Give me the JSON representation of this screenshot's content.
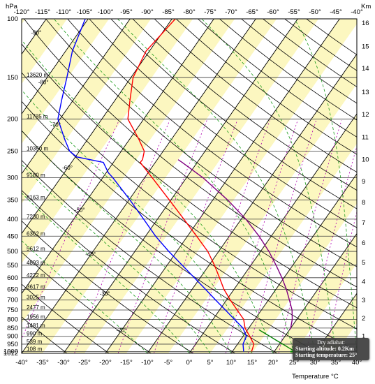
{
  "chart_data": {
    "type": "line",
    "chart_kind": "skew-t log-p thermodynamic diagram",
    "ylabel_left": "hPa",
    "ylabel_right": "Km",
    "xlabel": "Temperature °C",
    "temperature_range_bottom": [
      -40,
      40
    ],
    "top_axis_ticks": [
      "-120°",
      "-115°",
      "-110°",
      "-105°",
      "-100°",
      "-95°",
      "-90°",
      "-85°",
      "-80°",
      "-75°",
      "-70°",
      "-65°",
      "-60°",
      "-55°",
      "-50°",
      "-45°",
      "-40°"
    ],
    "bottom_axis_ticks": [
      "-40°",
      "-35°",
      "-30°",
      "-25°",
      "-20°",
      "-15°",
      "-10°",
      "-5°",
      "0°",
      "5°",
      "10°",
      "15°",
      "20°",
      "25°",
      "30°",
      "35°",
      "40°"
    ],
    "pressure_levels": [
      100,
      150,
      200,
      250,
      300,
      350,
      400,
      450,
      500,
      550,
      600,
      650,
      700,
      750,
      800,
      850,
      900,
      950,
      1000,
      1012
    ],
    "pressure_labels": [
      "100",
      "150",
      "200",
      "250",
      "300",
      "350",
      "400",
      "450",
      "500",
      "550",
      "600",
      "650",
      "700",
      "750",
      "800",
      "850",
      "900",
      "950",
      "1000",
      "1012"
    ],
    "height_labels": [
      {
        "p": 150,
        "text": "13620 m"
      },
      {
        "p": 200,
        "text": "11785 m"
      },
      {
        "p": 250,
        "text": "10350 m"
      },
      {
        "p": 300,
        "text": "9180 m"
      },
      {
        "p": 350,
        "text": "8163 m"
      },
      {
        "p": 400,
        "text": "7230 m"
      },
      {
        "p": 450,
        "text": "6362 m"
      },
      {
        "p": 500,
        "text": "5612 m"
      },
      {
        "p": 550,
        "text": "4893 m"
      },
      {
        "p": 600,
        "text": "4222 m"
      },
      {
        "p": 650,
        "text": "3617 m"
      },
      {
        "p": 700,
        "text": "3025 m"
      },
      {
        "p": 750,
        "text": "2477 m"
      },
      {
        "p": 800,
        "text": "1956 m"
      },
      {
        "p": 850,
        "text": "1481 m"
      },
      {
        "p": 900,
        "text": "990 m"
      },
      {
        "p": 950,
        "text": "539 m"
      },
      {
        "p": 1000,
        "text": "108 m"
      }
    ],
    "km_ticks": [
      {
        "km": 1,
        "p": 898
      },
      {
        "km": 2,
        "p": 795
      },
      {
        "km": 3,
        "p": 701
      },
      {
        "km": 4,
        "p": 616
      },
      {
        "km": 5,
        "p": 540
      },
      {
        "km": 6,
        "p": 472
      },
      {
        "km": 7,
        "p": 410
      },
      {
        "km": 8,
        "p": 356
      },
      {
        "km": 9,
        "p": 308
      },
      {
        "km": 10,
        "p": 265
      },
      {
        "km": 11,
        "p": 227
      },
      {
        "km": 12,
        "p": 194
      },
      {
        "km": 13,
        "p": 166
      },
      {
        "km": 14,
        "p": 141
      },
      {
        "km": 15,
        "p": 121
      },
      {
        "km": 16,
        "p": 103
      }
    ],
    "isotherm_labels": [
      {
        "t": -90,
        "p": 110,
        "text": "-90°"
      },
      {
        "t": -80,
        "p": 155,
        "text": "-80°"
      },
      {
        "t": -70,
        "p": 208,
        "text": "-70°"
      },
      {
        "t": -60,
        "p": 280,
        "text": "-60°"
      },
      {
        "t": -50,
        "p": 375,
        "text": "-50°"
      },
      {
        "t": -40,
        "p": 510,
        "text": "-40°"
      },
      {
        "t": -30,
        "p": 670,
        "text": "-30°"
      },
      {
        "t": -20,
        "p": 860,
        "text": "-20°"
      }
    ],
    "series": [
      {
        "name": "Temperature",
        "color": "#ff0000",
        "points": [
          [
            1000,
            14.6
          ],
          [
            950,
            13.9
          ],
          [
            900,
            11.6
          ],
          [
            850,
            9.1
          ],
          [
            800,
            7.3
          ],
          [
            750,
            4.2
          ],
          [
            700,
            0.9
          ],
          [
            650,
            -2.4
          ],
          [
            600,
            -5.4
          ],
          [
            550,
            -8.7
          ],
          [
            500,
            -12.6
          ],
          [
            450,
            -17.8
          ],
          [
            400,
            -23.7
          ],
          [
            350,
            -30.4
          ],
          [
            300,
            -38.2
          ],
          [
            270,
            -43.6
          ],
          [
            265,
            -43.5
          ],
          [
            250,
            -44.5
          ],
          [
            230,
            -47.8
          ],
          [
            200,
            -53.8
          ],
          [
            175,
            -56.5
          ],
          [
            150,
            -59.5
          ],
          [
            125,
            -60.8
          ],
          [
            100,
            -59.2
          ]
        ]
      },
      {
        "name": "Dew point",
        "color": "#0000ff",
        "points": [
          [
            1000,
            12.7
          ],
          [
            950,
            11.3
          ],
          [
            900,
            10.8
          ],
          [
            850,
            8.6
          ],
          [
            800,
            5.1
          ],
          [
            750,
            1.4
          ],
          [
            700,
            -2.6
          ],
          [
            650,
            -6.8
          ],
          [
            600,
            -11.4
          ],
          [
            550,
            -16.4
          ],
          [
            500,
            -21.9
          ],
          [
            450,
            -27.6
          ],
          [
            400,
            -33.3
          ],
          [
            350,
            -39.8
          ],
          [
            300,
            -47.6
          ],
          [
            290,
            -49.5
          ],
          [
            270,
            -52.4
          ],
          [
            260,
            -59.7
          ],
          [
            250,
            -62.3
          ],
          [
            230,
            -65.5
          ],
          [
            200,
            -70.5
          ],
          [
            175,
            -72.8
          ],
          [
            150,
            -75.3
          ],
          [
            125,
            -78.4
          ],
          [
            100,
            -80.7
          ]
        ]
      },
      {
        "name": "Parcel path",
        "color": "#800080",
        "points": [
          [
            860,
            20.0
          ],
          [
            850,
            20.0
          ],
          [
            800,
            18.9
          ],
          [
            750,
            17.3
          ],
          [
            700,
            15.0
          ],
          [
            650,
            12.5
          ],
          [
            600,
            9.5
          ],
          [
            550,
            6.0
          ],
          [
            500,
            2.0
          ],
          [
            450,
            -2.9
          ],
          [
            400,
            -8.9
          ],
          [
            350,
            -16.5
          ],
          [
            300,
            -26.1
          ],
          [
            270,
            -33.6
          ],
          [
            265,
            -35.0
          ]
        ]
      },
      {
        "name": "Dry adiabat",
        "color": "#008000",
        "points": [
          [
            1000,
            25.0
          ],
          [
            975,
            22.9
          ],
          [
            950,
            20.8
          ],
          [
            925,
            18.6
          ],
          [
            900,
            16.4
          ],
          [
            875,
            14.1
          ],
          [
            860,
            12.7
          ]
        ]
      }
    ],
    "dry_adiabat_thetas_c": [
      -30,
      -20,
      -10,
      0,
      10,
      20,
      30,
      40,
      50,
      60,
      70,
      80,
      90,
      100,
      110,
      120,
      130,
      140,
      150,
      160,
      170,
      180,
      190,
      200
    ],
    "moist_adiabat_starts_c": [
      -10,
      0,
      5,
      10,
      15,
      20,
      25,
      30,
      35,
      40
    ],
    "mixing_ratios_gkg": [
      0.1,
      0.4,
      1,
      2,
      4,
      7,
      10,
      16,
      24,
      32
    ],
    "isotherm_spacing_c": 5,
    "band_colors": [
      "#fcf7c0",
      "#ffffff"
    ],
    "colors": {
      "temperature": "#ff0000",
      "dewpoint": "#0000ff",
      "parcel": "#800080",
      "dry_adiabat_highlight": "#008000",
      "dry_adiabats": "#000000",
      "moist_adiabats": "#1a9b1a",
      "mixing_ratio": "#b000b0",
      "isobar": "#3a3a3a"
    },
    "surface_marker": {
      "p": 1000,
      "t": 25,
      "color": "#00a000"
    },
    "tooltip": {
      "title": "Dry adiabat:",
      "line1": "Starting altitude: 0.2Km",
      "line2": "Starting temperature: 25°"
    }
  }
}
